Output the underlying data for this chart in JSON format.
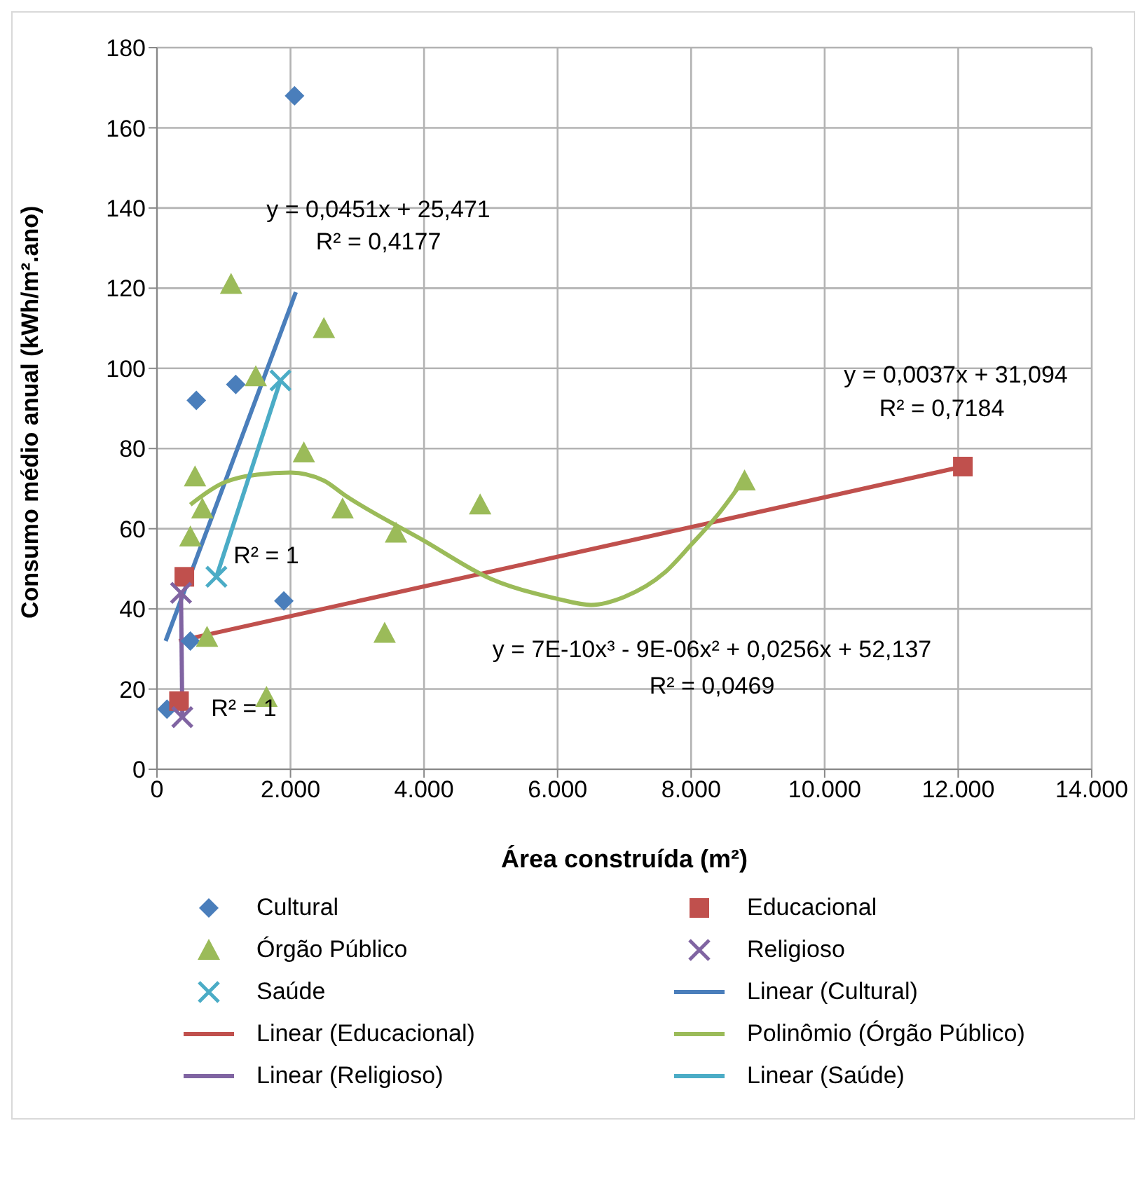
{
  "chart_data": {
    "type": "scatter",
    "xlabel": "Área construída (m²)",
    "ylabel": "Consumo médio anual (kWh/m².ano)",
    "xlim": [
      0,
      14000
    ],
    "xticks": [
      {
        "value": 0,
        "label": "0"
      },
      {
        "value": 2000,
        "label": "2.000"
      },
      {
        "value": 4000,
        "label": "4.000"
      },
      {
        "value": 6000,
        "label": "6.000"
      },
      {
        "value": 8000,
        "label": "8.000"
      },
      {
        "value": 10000,
        "label": "10.000"
      },
      {
        "value": 12000,
        "label": "12.000"
      },
      {
        "value": 14000,
        "label": "14.000"
      }
    ],
    "ylim": [
      0,
      180
    ],
    "yticks": [
      0,
      20,
      40,
      60,
      80,
      100,
      120,
      140,
      160,
      180
    ],
    "grid": true,
    "legend": "bottom",
    "series": [
      {
        "name": "Cultural",
        "type": "scatter",
        "marker": "diamond",
        "color": "#4a7ebb",
        "x": [
          2060,
          590,
          1180,
          1900,
          500,
          150
        ],
        "values": [
          168,
          92,
          96,
          42,
          32,
          15
        ]
      },
      {
        "name": "Educacional",
        "type": "scatter",
        "marker": "square",
        "color": "#c0504d",
        "x": [
          410,
          330,
          12070
        ],
        "values": [
          48,
          17,
          75.5
        ]
      },
      {
        "name": "Órgão Público",
        "type": "scatter",
        "marker": "triangle",
        "color": "#9bbb59",
        "x": [
          1110,
          2500,
          1480,
          2200,
          570,
          680,
          2780,
          3580,
          4840,
          500,
          750,
          3410,
          1640,
          8800
        ],
        "values": [
          121,
          110,
          98,
          79,
          73,
          65,
          65,
          59,
          66,
          58,
          33,
          34,
          18,
          72
        ]
      },
      {
        "name": "Religioso",
        "type": "scatter",
        "marker": "cross",
        "color": "#8064a2",
        "x": [
          360,
          380
        ],
        "values": [
          44,
          13
        ]
      },
      {
        "name": "Saúde",
        "type": "scatter",
        "marker": "cross",
        "color": "#4bacc6",
        "x": [
          890,
          1850
        ],
        "values": [
          48,
          97
        ]
      },
      {
        "name": "Linear (Cultural)",
        "type": "line",
        "marker": "none",
        "color": "#4a7ebb",
        "x": [
          130,
          2080
        ],
        "values": [
          32,
          119
        ]
      },
      {
        "name": "Linear (Educacional)",
        "type": "line",
        "marker": "none",
        "color": "#c0504d",
        "x": [
          330,
          12070
        ],
        "values": [
          32,
          75.5
        ]
      },
      {
        "name": "Polinômio (Órgão Público)",
        "type": "line",
        "marker": "none",
        "color": "#9bbb59",
        "x": [
          500,
          1000,
          1500,
          2000,
          2500,
          2800,
          4000,
          5000,
          6000,
          6500,
          7000,
          7600,
          8000,
          8400,
          8800
        ],
        "values": [
          66,
          71.5,
          73.5,
          74,
          72,
          68.5,
          57,
          47.5,
          42.5,
          41,
          43,
          49,
          56,
          63.5,
          72.5
        ]
      },
      {
        "name": "Linear (Religioso)",
        "type": "line",
        "marker": "none",
        "color": "#8064a2",
        "x": [
          360,
          380
        ],
        "values": [
          44,
          13
        ]
      },
      {
        "name": "Linear (Saúde)",
        "type": "line",
        "marker": "none",
        "color": "#4bacc6",
        "x": [
          890,
          1850
        ],
        "values": [
          48,
          97
        ]
      }
    ],
    "annotations": [
      "y = 0,0451x + 25,471",
      "R² = 0,4177",
      "y = 0,0037x + 31,094",
      "R² = 0,7184",
      "y = 7E-10x³ - 9E-06x² + 0,0256x + 52,137",
      "R² = 0,0469",
      "R² = 1",
      "R² = 1"
    ]
  }
}
